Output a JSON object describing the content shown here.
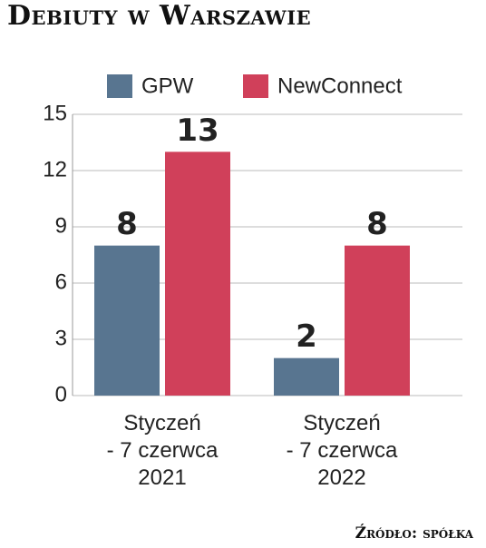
{
  "chart_data": {
    "type": "bar",
    "title": "Debiuty w Warszawie",
    "source": "Źródło: spółka",
    "categories": [
      "Styczeń\n- 7 czerwca\n2021",
      "Styczeń\n- 7 czerwca\n2022"
    ],
    "series": [
      {
        "name": "GPW",
        "color": "#587590",
        "values": [
          8,
          2
        ]
      },
      {
        "name": "NewConnect",
        "color": "#d0405a",
        "values": [
          13,
          8
        ]
      }
    ],
    "ylim": [
      0,
      15
    ],
    "yticks": [
      0,
      3,
      6,
      9,
      12,
      15
    ],
    "grid": true
  }
}
